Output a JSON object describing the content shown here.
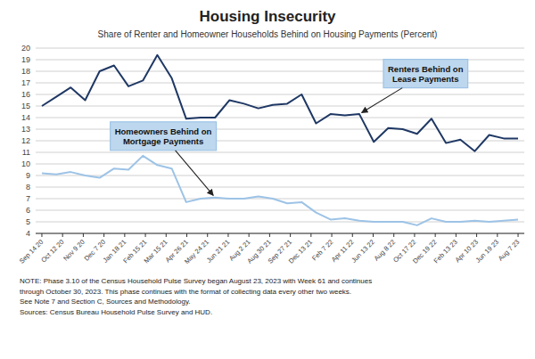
{
  "chart_data": {
    "type": "line",
    "title": "Housing Insecurity",
    "subtitle": "Share of Renter and Homeowner Households Behind on Housing Payments (Percent)",
    "xlim": [
      -0.3,
      23.3
    ],
    "xticks": [
      {
        "value": 0,
        "label": "Sep 14 20"
      },
      {
        "value": 1,
        "label": "Oct 12 20"
      },
      {
        "value": 2,
        "label": "Nov 9 20"
      },
      {
        "value": 3,
        "label": "Dec 7 20"
      },
      {
        "value": 4,
        "label": "Jan 18 21"
      },
      {
        "value": 5,
        "label": "Feb 15 21"
      },
      {
        "value": 6,
        "label": "Mar 15 21"
      },
      {
        "value": 7,
        "label": "Apr 26 21"
      },
      {
        "value": 8,
        "label": "May 24 21"
      },
      {
        "value": 9,
        "label": "Jun 21 21"
      },
      {
        "value": 10,
        "label": "Aug 2 21"
      },
      {
        "value": 11,
        "label": "Aug 30 21"
      },
      {
        "value": 12,
        "label": "Sep 27 21"
      },
      {
        "value": 13,
        "label": "Dec 13 21"
      },
      {
        "value": 14,
        "label": "Feb 7 22"
      },
      {
        "value": 15,
        "label": "Apr 11 22"
      },
      {
        "value": 16,
        "label": "Jun 13 22"
      },
      {
        "value": 17,
        "label": "Aug 8 22"
      },
      {
        "value": 18,
        "label": "Oct 17 22"
      },
      {
        "value": 19,
        "label": "Dec 19 22"
      },
      {
        "value": 20,
        "label": "Feb 13 23"
      },
      {
        "value": 21,
        "label": "Apr 10 23"
      },
      {
        "value": 22,
        "label": "Jun 19 23"
      },
      {
        "value": 23,
        "label": "Aug 7 23"
      }
    ],
    "series": [
      {
        "color": "#1F3864",
        "values": [
          15.0,
          15.8,
          16.6,
          15.5,
          18.0,
          18.5,
          16.7,
          17.2,
          19.4,
          17.4,
          13.9,
          14.0,
          14.0,
          15.5,
          15.2,
          14.8,
          15.1,
          15.2,
          16.0,
          13.5,
          14.3,
          14.2,
          14.3,
          11.9,
          13.1,
          13.0,
          12.6,
          13.9,
          11.8,
          12.1,
          11.1,
          12.5,
          12.2,
          12.2
        ]
      },
      {
        "color": "#9DC3E6",
        "values": [
          9.2,
          9.1,
          9.3,
          9.0,
          8.8,
          9.6,
          9.5,
          10.7,
          9.9,
          9.6,
          6.7,
          7.0,
          7.1,
          7.0,
          7.0,
          7.2,
          7.0,
          6.6,
          6.7,
          5.8,
          5.2,
          5.3,
          5.1,
          5.0,
          5.0,
          5.0,
          4.7,
          5.3,
          5.0,
          5.0,
          5.1,
          5.0,
          5.1,
          5.2
        ]
      }
    ],
    "ylim": [
      4,
      20
    ],
    "yticks": [
      4,
      5,
      6,
      7,
      8,
      9,
      10,
      11,
      12,
      13,
      14,
      15,
      16,
      17,
      18,
      19,
      20
    ],
    "grid": true,
    "annotations": [
      "Renters Behind on\nLease Payments",
      "Homeowners Behind on\nMortgage Payments"
    ],
    "note": "NOTE: Phase 3.10 of the Census Household Pulse Survey began August 23, 2023 with Week 61 and continues\nthrough October 30, 2023. This phase continues with the format of collecting data every other two weeks.\nSee Note 7 and Section C, Sources and Methodology.\nSources: Census Bureau Household Pulse Survey and HUD."
  }
}
